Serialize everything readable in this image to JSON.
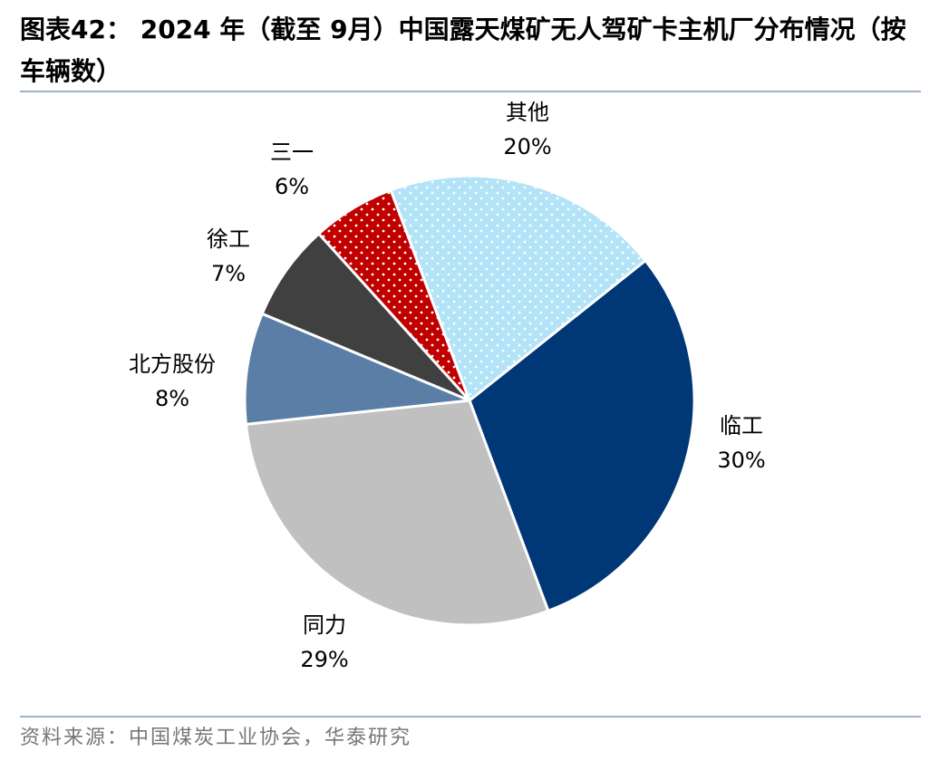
{
  "title": "图表42： 2024 年（截至 9月）中国露天煤矿无人驾矿卡主机厂分布情况（按车辆数）",
  "source": "资料来源：中国煤炭工业协会，华泰研究",
  "colors": {
    "临工": "#003776",
    "同力": "#c0c0c0",
    "北方股份": "#5b7ea6",
    "徐工": "#404040",
    "三一": "#c00000",
    "其他": "#b3e3f7"
  },
  "chart_data": {
    "type": "pie",
    "title": "",
    "slices": [
      {
        "label": "临工",
        "value": 30,
        "value_label": "30%"
      },
      {
        "label": "同力",
        "value": 29,
        "value_label": "29%"
      },
      {
        "label": "北方股份",
        "value": 8,
        "value_label": "8%"
      },
      {
        "label": "徐工",
        "value": 7,
        "value_label": "7%"
      },
      {
        "label": "三一",
        "value": 6,
        "value_label": "6%"
      },
      {
        "label": "其他",
        "value": 20,
        "value_label": "20%"
      }
    ],
    "patterns": {
      "三一": "dotted",
      "其他": "dotted"
    }
  }
}
